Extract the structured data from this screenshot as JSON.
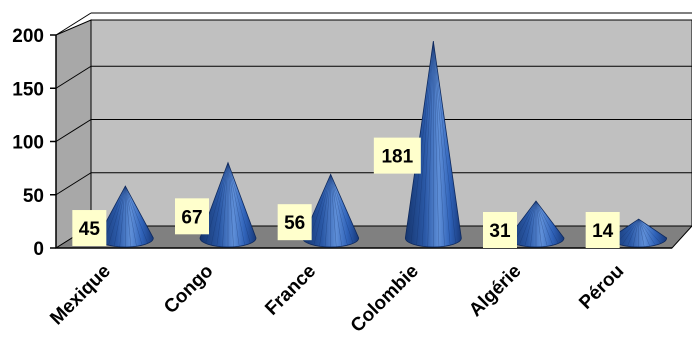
{
  "chart_data": {
    "type": "bar",
    "style": "3d-cone",
    "categories": [
      "Mexique",
      "Congo",
      "France",
      "Colombie",
      "Algérie",
      "Pérou"
    ],
    "values": [
      45,
      67,
      56,
      181,
      31,
      14
    ],
    "data_labels": [
      "45",
      "67",
      "56",
      "181",
      "31",
      "14"
    ],
    "title": "",
    "xlabel": "",
    "ylabel": "",
    "ylim": [
      0,
      200
    ],
    "yticks": [
      0,
      50,
      100,
      150,
      200
    ],
    "ytick_labels": [
      "0",
      "50",
      "100",
      "150",
      "200"
    ],
    "grid": true,
    "legend": "none",
    "colors": {
      "wall": "#c0c0c0",
      "floor": "#808080",
      "cone_dark": "#1a3f86",
      "cone_mid": "#2f62b8",
      "cone_light": "#5f8fd8",
      "label_bg": "#ffffcc"
    }
  }
}
